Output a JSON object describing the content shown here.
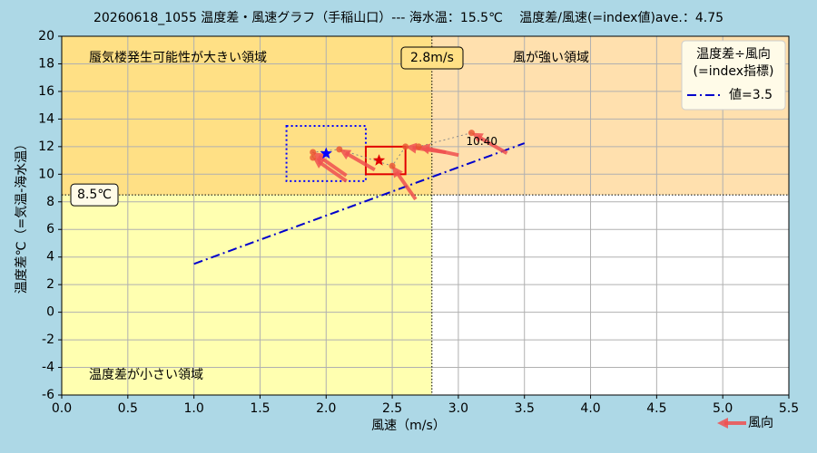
{
  "chart_data": {
    "type": "scatter",
    "title": "20260618_1055 温度差・風速グラフ（手稲山口）--- 海水温：15.5℃　 温度差/風速(=index値)ave.：4.75",
    "x_label": "風速（m/s）",
    "y_label": "温度差℃（=気温-海水温）",
    "xlim": [
      0,
      5.5
    ],
    "ylim": [
      -6,
      20
    ],
    "xticks": [
      {
        "value": 0,
        "label": "0.0"
      },
      0.5,
      {
        "value": 1,
        "label": "1.0"
      },
      1.5,
      {
        "value": 2,
        "label": "2.0"
      },
      2.5,
      {
        "value": 3,
        "label": "3.0"
      },
      3.5,
      {
        "value": 4,
        "label": "4.0"
      },
      4.5,
      {
        "value": 5,
        "label": "5.0"
      },
      5.5
    ],
    "yticks": [
      -6,
      -4,
      -2,
      0,
      2,
      4,
      6,
      8,
      10,
      12,
      14,
      16,
      18,
      20
    ],
    "grid": true,
    "regions": {
      "high": {
        "label": "蜃気楼発生可能性が大きい領域",
        "color": "#ffe085"
      },
      "wind": {
        "label": "風が強い領域",
        "color": "#ffe0ae"
      },
      "low": {
        "label": "温度差が小さい領域",
        "color": "#ffffb0"
      },
      "none_color": "#ffffff"
    },
    "wind_threshold": {
      "value": 2.8,
      "label": "2.8m/s"
    },
    "temp_threshold": {
      "value": 8.5,
      "label": "8.5℃"
    },
    "series": [
      {
        "name": "温度差",
        "color": "#e8512f",
        "x": [
          1.9,
          1.9,
          2.1,
          2.5,
          2.6,
          2.7,
          3.1
        ],
        "values": [
          11.2,
          11.6,
          11.8,
          10.6,
          12.0,
          12.0,
          13.0
        ]
      }
    ],
    "wind": {
      "name": "風向",
      "color": "#f05050",
      "angles": [
        145,
        145,
        150,
        125,
        172,
        168,
        150
      ]
    },
    "point_label": {
      "index": 6,
      "text": "10:40"
    },
    "mean": {
      "x": 2.0,
      "y": 11.5,
      "color": "#0000ff",
      "xlim": [
        1.7,
        2.3
      ],
      "ylim": [
        9.5,
        13.5
      ]
    },
    "latest": {
      "x": 2.4,
      "y": 11.0,
      "color": "#e00000",
      "xlim": [
        2.3,
        2.6
      ],
      "ylim": [
        10,
        12
      ]
    },
    "reference": {
      "name": "値=3.5",
      "color": "#0000cc",
      "x": [
        1.0,
        3.5
      ],
      "values": [
        3.5,
        12.25
      ]
    },
    "legend": {
      "title": "温度差÷風向\n(=index指標)",
      "position": "upper right"
    }
  }
}
